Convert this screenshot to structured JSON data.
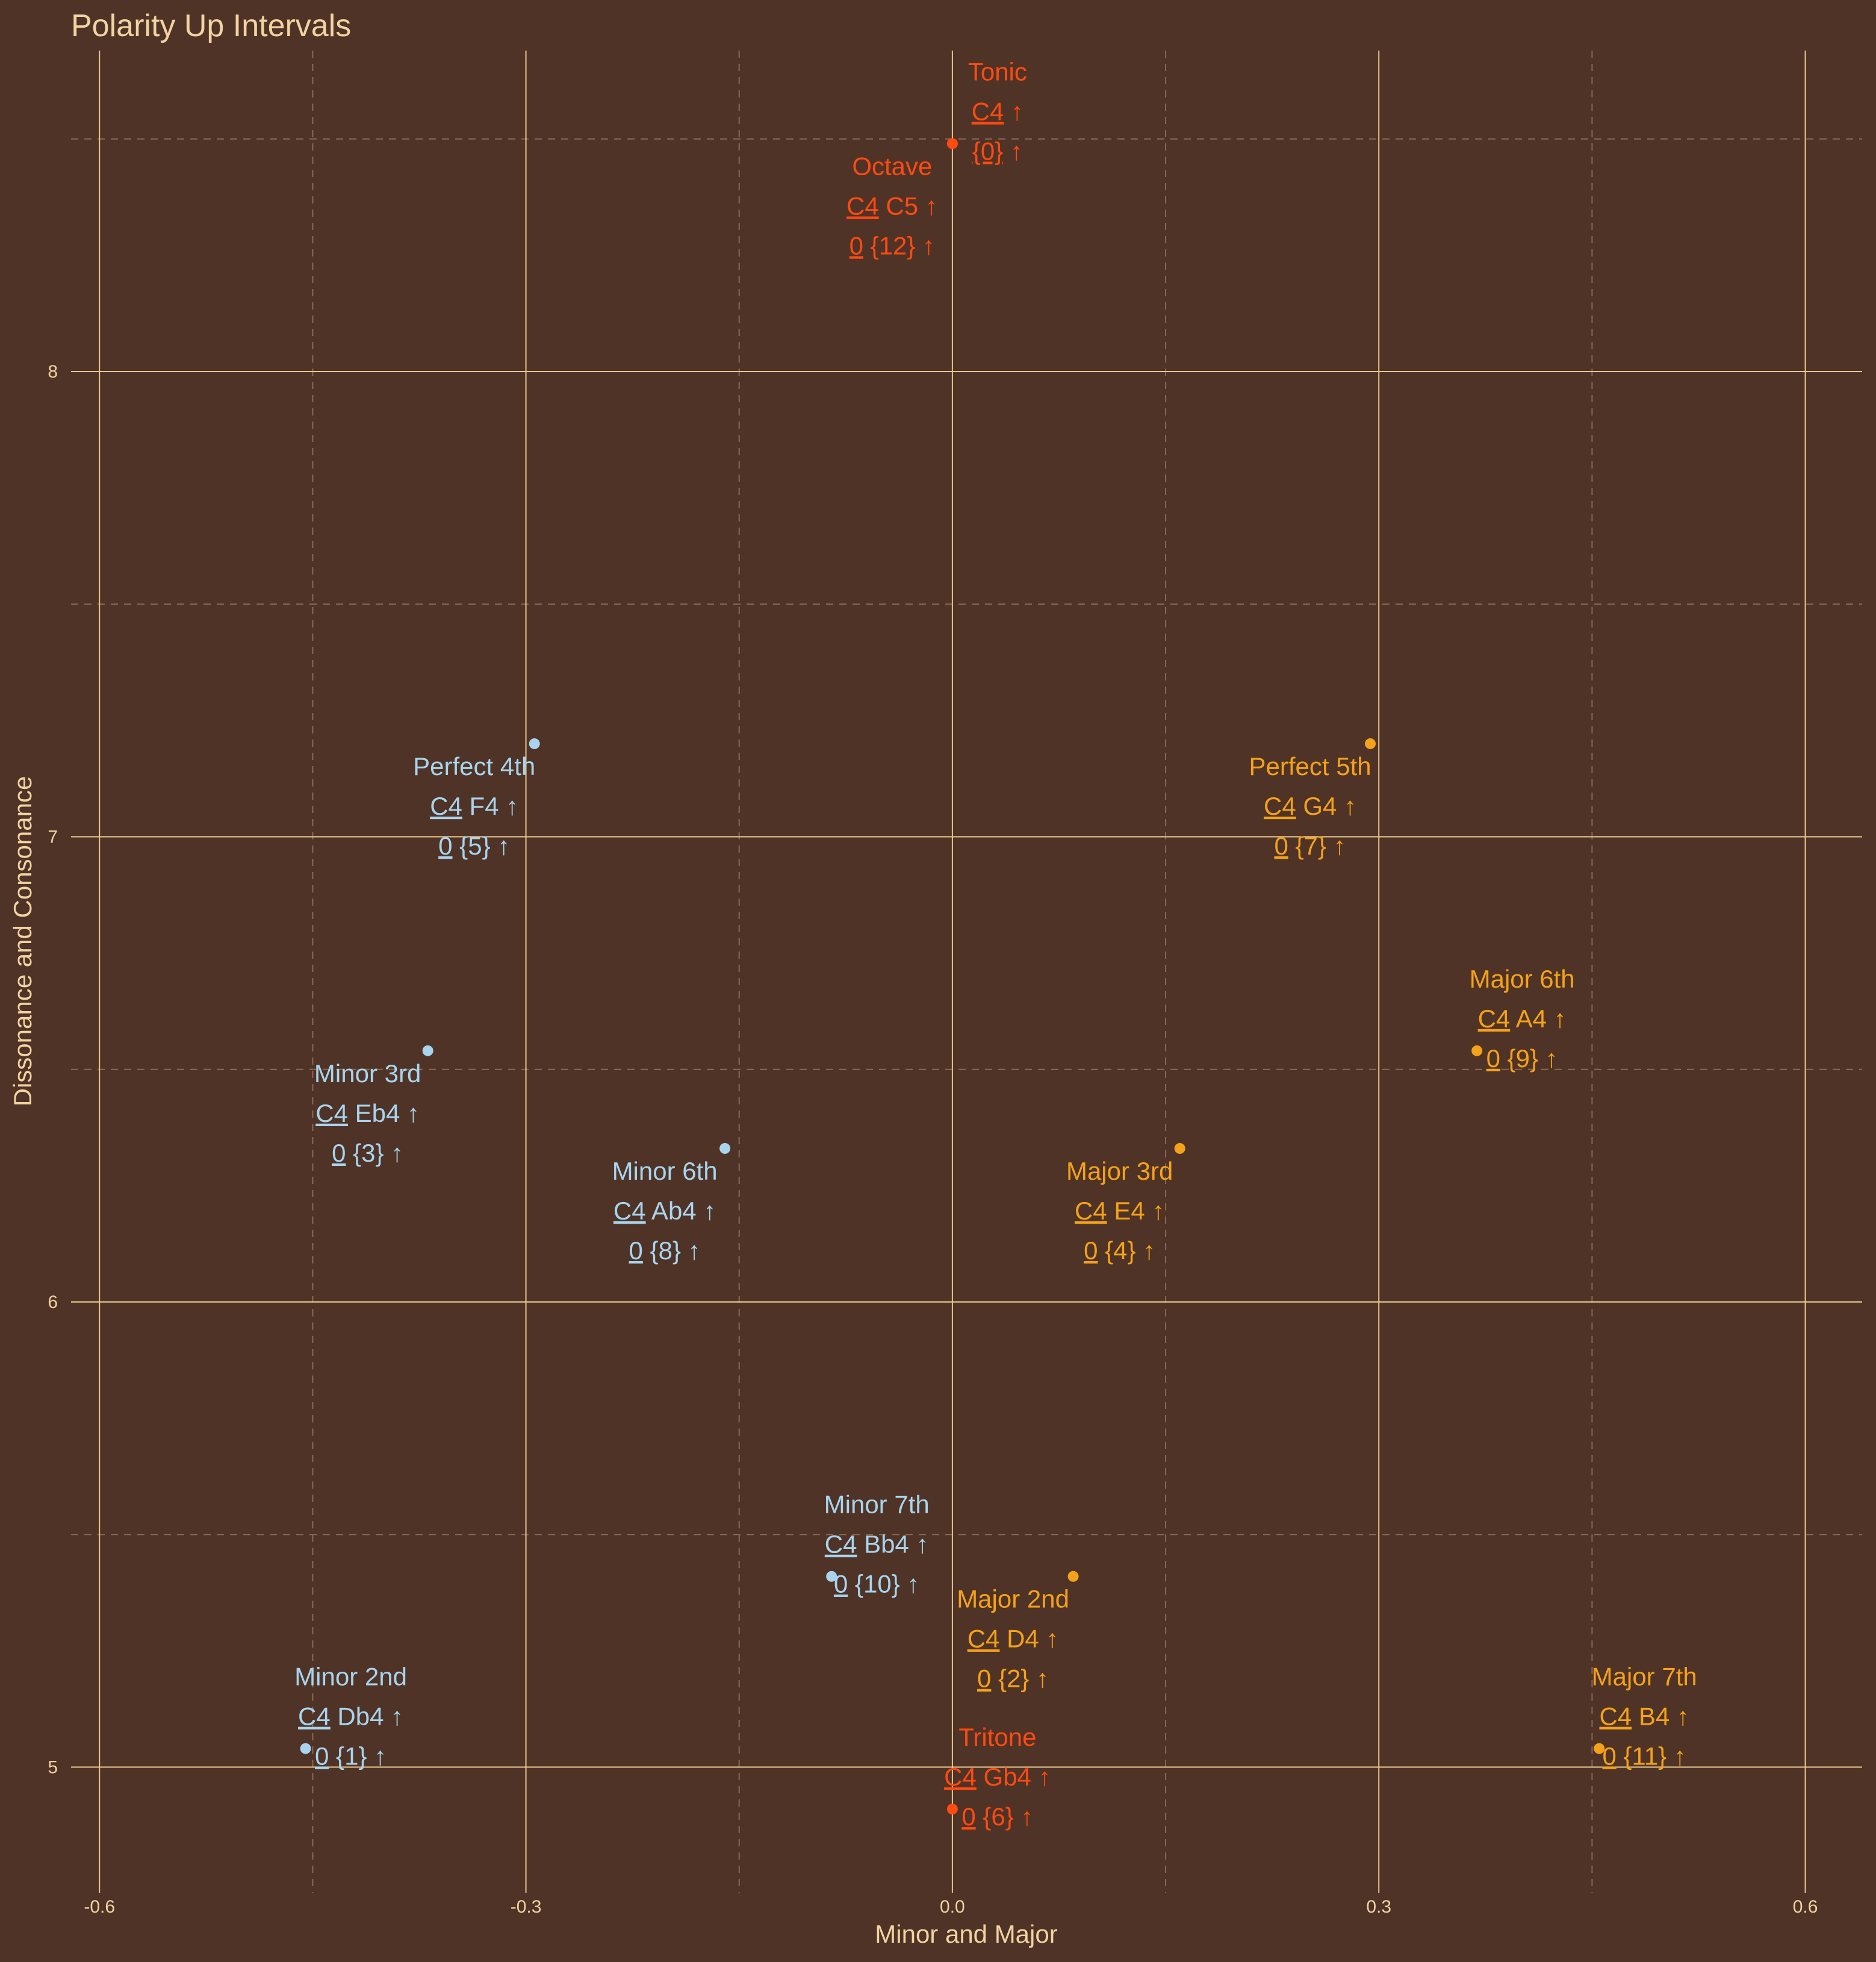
{
  "colors": {
    "background": "#4f3326",
    "text": "#f2d3a2",
    "grid_major": "#e8c98f",
    "grid_minor": "#8a6a55",
    "tonic": "#ff4a12",
    "minor": "#a8d4ee",
    "major": "#f4a21a"
  },
  "chart_data": {
    "type": "scatter",
    "title": "Polarity Up Intervals",
    "xlabel": "Minor and Major",
    "ylabel": "Dissonance and Consonance",
    "xlim": [
      -0.62,
      0.64
    ],
    "ylim": [
      4.73,
      8.69
    ],
    "x_ticks": [
      -0.6,
      -0.3,
      0.0,
      0.3,
      0.6
    ],
    "x_tick_labels": [
      "-0.6",
      "-0.3",
      "0.0",
      "0.3",
      "0.6"
    ],
    "y_ticks": [
      5,
      6,
      7,
      8
    ],
    "y_tick_labels": [
      "5",
      "6",
      "7",
      "8"
    ],
    "grid": true,
    "legend": "none",
    "points": [
      {
        "name": "Tonic",
        "x": 0.0,
        "y": 8.49,
        "group": "tonic",
        "notes": "C4",
        "pcs": "{0}",
        "underline": "C4",
        "pc_underline": "{0}",
        "arrow": "↑",
        "label_pos": "above-right"
      },
      {
        "name": "Octave",
        "x": 0.0,
        "y": 8.49,
        "group": "tonic",
        "notes": "C4 C5",
        "pcs": "0 {12}",
        "underline": "C4",
        "pc_underline": "0",
        "arrow": "↑",
        "label_pos": "below-left"
      },
      {
        "name": "Perfect 4th",
        "x": -0.294,
        "y": 7.2,
        "group": "minor",
        "notes": "C4 F4",
        "pcs": "0 {5}",
        "underline": "C4",
        "pc_underline": "0",
        "arrow": "↑",
        "label_pos": "below-left"
      },
      {
        "name": "Perfect 5th",
        "x": 0.294,
        "y": 7.2,
        "group": "major",
        "notes": "C4 G4",
        "pcs": "0 {7}",
        "underline": "C4",
        "pc_underline": "0",
        "arrow": "↑",
        "label_pos": "below-left"
      },
      {
        "name": "Minor 3rd",
        "x": -0.369,
        "y": 6.54,
        "group": "minor",
        "notes": "C4 Eb4",
        "pcs": "0 {3}",
        "underline": "C4",
        "pc_underline": "0",
        "arrow": "↑",
        "label_pos": "below-left"
      },
      {
        "name": "Major 6th",
        "x": 0.369,
        "y": 6.54,
        "group": "major",
        "notes": "C4 A4",
        "pcs": "0 {9}",
        "underline": "C4",
        "pc_underline": "0",
        "arrow": "↑",
        "label_pos": "above-right"
      },
      {
        "name": "Minor 6th",
        "x": -0.16,
        "y": 6.33,
        "group": "minor",
        "notes": "C4 Ab4",
        "pcs": "0 {8}",
        "underline": "C4",
        "pc_underline": "0",
        "arrow": "↑",
        "label_pos": "below-left"
      },
      {
        "name": "Major 3rd",
        "x": 0.16,
        "y": 6.33,
        "group": "major",
        "notes": "C4 E4",
        "pcs": "0 {4}",
        "underline": "C4",
        "pc_underline": "0",
        "arrow": "↑",
        "label_pos": "below-left"
      },
      {
        "name": "Minor 7th",
        "x": -0.085,
        "y": 5.41,
        "group": "minor",
        "notes": "C4 Bb4",
        "pcs": "0 {10}",
        "underline": "C4",
        "pc_underline": "0",
        "arrow": "↑",
        "label_pos": "above-right"
      },
      {
        "name": "Major 2nd",
        "x": 0.085,
        "y": 5.41,
        "group": "major",
        "notes": "C4 D4",
        "pcs": "0 {2}",
        "underline": "C4",
        "pc_underline": "0",
        "arrow": "↑",
        "label_pos": "below-left"
      },
      {
        "name": "Minor 2nd",
        "x": -0.455,
        "y": 5.04,
        "group": "minor",
        "notes": "C4 Db4",
        "pcs": "0 {1}",
        "underline": "C4",
        "pc_underline": "0",
        "arrow": "↑",
        "label_pos": "above-right"
      },
      {
        "name": "Major 7th",
        "x": 0.455,
        "y": 5.04,
        "group": "major",
        "notes": "C4 B4",
        "pcs": "0 {11}",
        "underline": "C4",
        "pc_underline": "0",
        "arrow": "↑",
        "label_pos": "above-right"
      },
      {
        "name": "Tritone",
        "x": 0.0,
        "y": 4.91,
        "group": "tonic",
        "notes": "C4 Gb4",
        "pcs": "0 {6}",
        "underline": "C4",
        "pc_underline": "0",
        "arrow": "↑",
        "label_pos": "above-right"
      }
    ]
  }
}
